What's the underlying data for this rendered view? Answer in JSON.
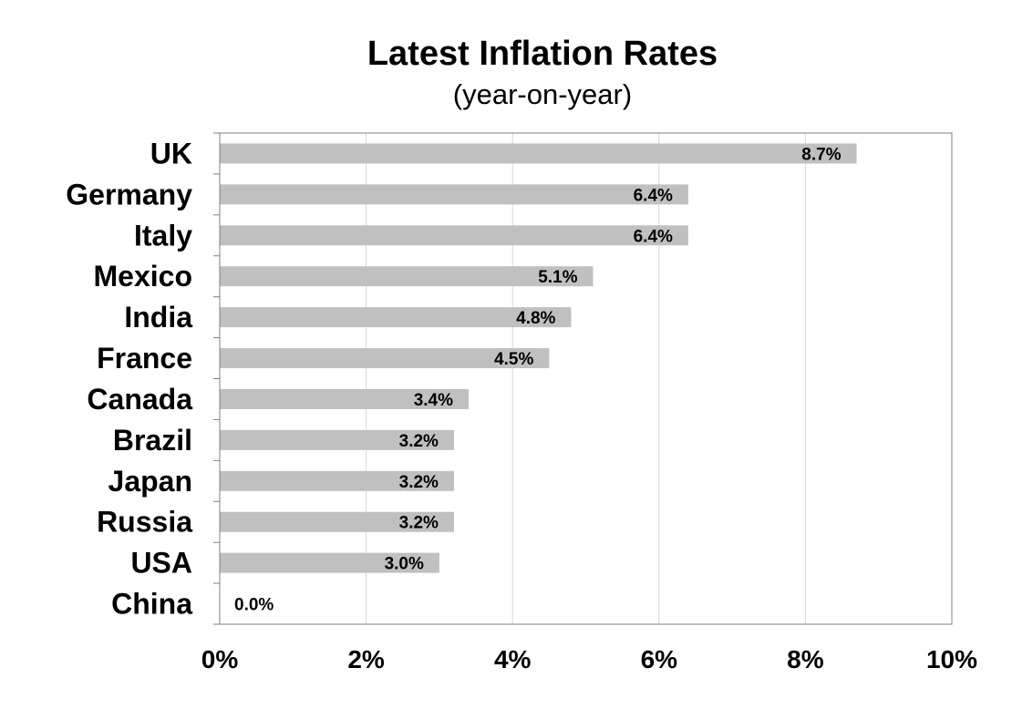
{
  "chart_data": {
    "type": "bar",
    "orientation": "horizontal",
    "title": "Latest Inflation Rates",
    "subtitle": "(year-on-year)",
    "xlabel": "",
    "ylabel": "",
    "categories": [
      "UK",
      "Germany",
      "Italy",
      "Mexico",
      "India",
      "France",
      "Canada",
      "Brazil",
      "Japan",
      "Russia",
      "USA",
      "China"
    ],
    "values": [
      8.7,
      6.4,
      6.4,
      5.1,
      4.8,
      4.5,
      3.4,
      3.2,
      3.2,
      3.2,
      3.0,
      0.0
    ],
    "data_labels": [
      "8.7%",
      "6.4%",
      "6.4%",
      "5.1%",
      "4.8%",
      "4.5%",
      "3.4%",
      "3.2%",
      "3.2%",
      "3.2%",
      "3.0%",
      "0.0%"
    ],
    "xlim": [
      0,
      10
    ],
    "x_ticks": [
      0,
      2,
      4,
      6,
      8,
      10
    ],
    "x_tick_labels": [
      "0%",
      "2%",
      "4%",
      "6%",
      "8%",
      "10%"
    ],
    "grid": "vertical",
    "legend": "none",
    "colors": {
      "bar": "#c0c0c0",
      "grid": "#d9d9d9",
      "axis": "#808080",
      "text": "#000000"
    }
  }
}
